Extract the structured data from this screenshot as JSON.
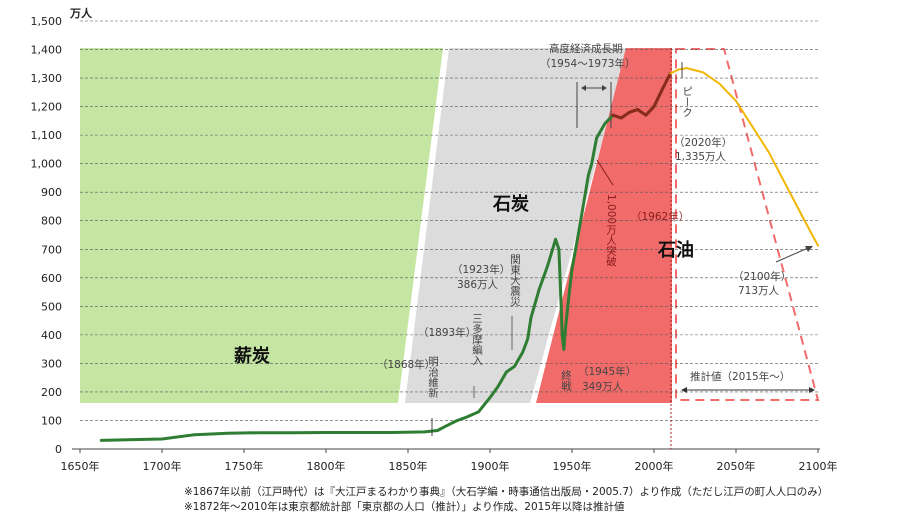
{
  "chart_data": {
    "type": "line",
    "unit_label": "万人",
    "xlim": [
      1650,
      2100
    ],
    "ylim": [
      0,
      1500
    ],
    "x_ticks": [
      "1650年",
      "1700年",
      "1750年",
      "1800年",
      "1850年",
      "1900年",
      "1950年",
      "2000年",
      "2050年",
      "2100年"
    ],
    "y_ticks": [
      "0",
      "100",
      "200",
      "300",
      "400",
      "500",
      "600",
      "700",
      "800",
      "900",
      "1,000",
      "1,100",
      "1,200",
      "1,300",
      "1,400",
      "1,500"
    ],
    "y_tick_values": [
      0,
      100,
      200,
      300,
      400,
      500,
      600,
      700,
      800,
      900,
      1000,
      1100,
      1200,
      1300,
      1400,
      1500
    ],
    "grid": "horizontal dashed",
    "series": [
      {
        "color": "#2e7d32",
        "x": [
          1663,
          1700,
          1720,
          1740,
          1760,
          1780,
          1800,
          1820,
          1840,
          1860,
          1868,
          1873,
          1880,
          1885,
          1893,
          1900,
          1905,
          1910,
          1915,
          1920,
          1923,
          1925,
          1930,
          1935,
          1940,
          1942,
          1943,
          1944,
          1945,
          1946,
          1948,
          1950,
          1955,
          1960,
          1962,
          1965,
          1970,
          1975,
          1980,
          1985,
          1990,
          1995,
          2000,
          2005,
          2010
        ],
        "y": [
          30,
          35,
          50,
          55,
          57,
          57,
          58,
          58,
          58,
          60,
          65,
          80,
          100,
          110,
          130,
          180,
          220,
          270,
          290,
          340,
          386,
          460,
          560,
          640,
          735,
          700,
          560,
          400,
          349,
          420,
          530,
          630,
          790,
          960,
          1000,
          1090,
          1140,
          1170,
          1160,
          1180,
          1190,
          1170,
          1200,
          1260,
          1316
        ]
      },
      {
        "color": "#8b2a1a",
        "x": [
          1975,
          1980,
          1985,
          1990,
          1995,
          2000,
          2005,
          2010
        ],
        "y": [
          1170,
          1160,
          1180,
          1190,
          1170,
          1200,
          1260,
          1316
        ]
      },
      {
        "color": "#f2b705",
        "x": [
          2010,
          2015,
          2020,
          2030,
          2040,
          2050,
          2060,
          2070,
          2080,
          2090,
          2100
        ],
        "y": [
          1316,
          1330,
          1335,
          1320,
          1280,
          1220,
          1130,
          1040,
          930,
          820,
          713
        ]
      }
    ],
    "bands": [
      {
        "label": "薪炭",
        "color": "#c5e6a3"
      },
      {
        "label": "石炭",
        "color": "#dcdcdc"
      },
      {
        "label": "石油",
        "color": "#f26b6b"
      }
    ],
    "annotations": {
      "period_label": "高度経済成長期",
      "period_range": "（1954～1973年）",
      "peak_label": "ピーク",
      "peak_year": "（2020年）",
      "peak_value": "1,335万人",
      "million_label": "1,000万人突破",
      "million_year": "（1962年）",
      "end_year": "（2100年）",
      "end_value": "713万人",
      "projection_label": "推計値（2015年～）",
      "quake_year": "（1923年）",
      "quake_value": "386万人",
      "quake_label": "関東大震災",
      "tama_year": "（1893年）",
      "tama_label": "三多摩編入",
      "meiji_year": "（1868年）",
      "meiji_label": "明治維新",
      "war_label": "終戦",
      "war_year": "（1945年）",
      "war_value": "349万人"
    },
    "notes": [
      "※1867年以前（江戸時代）は『大江戸まるわかり事典』（大石学編・時事通信出版局・2005.7）より作成（ただし江戸の町人人口のみ）",
      "※1872年～2010年は東京都統計部「東京都の人口（推計）」より作成、2015年以降は推計値"
    ]
  }
}
